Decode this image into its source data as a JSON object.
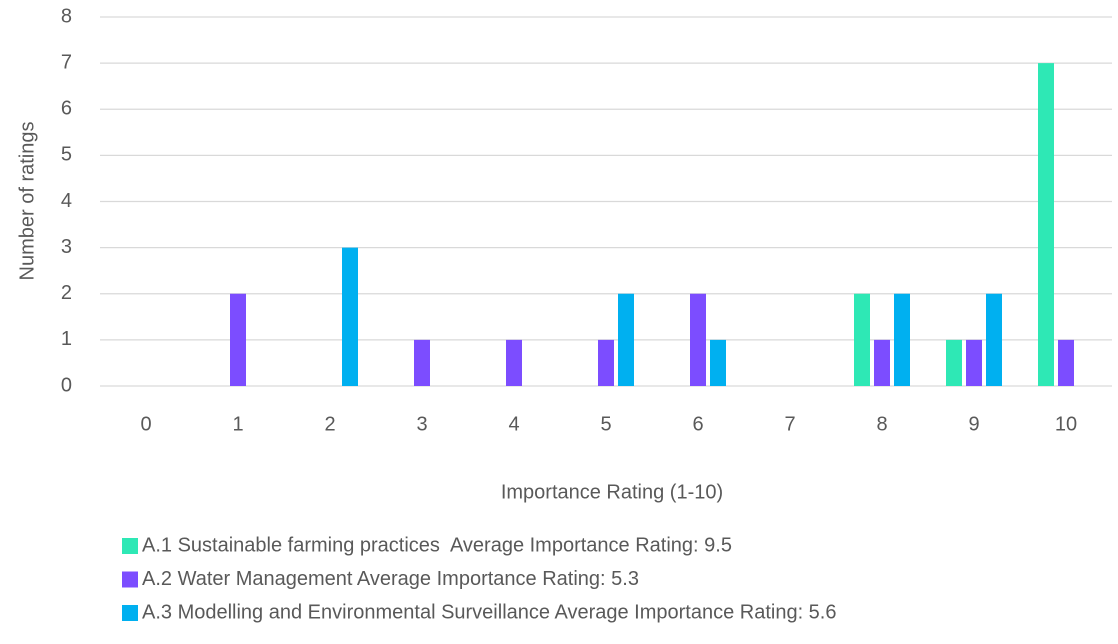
{
  "chart_data": {
    "type": "bar",
    "x_label": "Importance Rating (1-10)",
    "y_label": "Number of ratings",
    "categories": [
      "0",
      "1",
      "2",
      "3",
      "4",
      "5",
      "6",
      "7",
      "8",
      "9",
      "10"
    ],
    "series": [
      {
        "name": "A.1 Sustainable farming practices  Average Importance Rating: 9.5",
        "color": "#2ee8b5",
        "values": [
          0,
          0,
          0,
          0,
          0,
          0,
          0,
          0,
          2,
          1,
          7
        ]
      },
      {
        "name": "A.2 Water Management Average Importance Rating: 5.3",
        "color": "#7c4dff",
        "values": [
          0,
          2,
          0,
          1,
          1,
          1,
          2,
          0,
          1,
          1,
          1
        ]
      },
      {
        "name": "A.3 Modelling and Environmental Surveillance Average Importance Rating: 5.6",
        "color": "#00b0f0",
        "values": [
          0,
          0,
          3,
          0,
          0,
          2,
          1,
          0,
          2,
          2,
          0
        ]
      }
    ],
    "ylim": [
      0,
      8
    ],
    "yticks": [
      0,
      1,
      2,
      3,
      4,
      5,
      6,
      7,
      8
    ],
    "grid": true,
    "legend": "bottom"
  }
}
